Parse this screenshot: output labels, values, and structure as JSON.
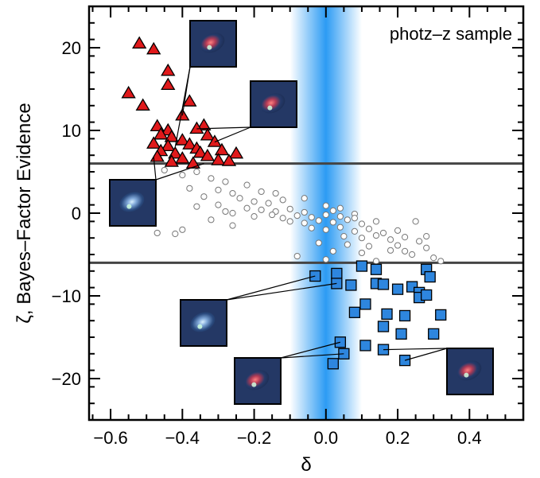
{
  "chart_data": {
    "type": "scatter",
    "annotation": "photz–z sample",
    "xlabel": "δ",
    "ylabel": "ζ, Bayes–Factor Evidence",
    "xlim": [
      -0.66,
      0.55
    ],
    "ylim": [
      -25,
      25
    ],
    "x_ticks": [
      -0.6,
      -0.4,
      -0.2,
      0.0,
      0.2,
      0.4
    ],
    "x_tick_labels": [
      "−0.6",
      "−0.4",
      "−0.2",
      "0.0",
      "0.2",
      "0.4"
    ],
    "y_ticks": [
      -20,
      -10,
      0,
      10,
      20
    ],
    "y_tick_labels": [
      "−20",
      "−10",
      "0",
      "10",
      "20"
    ],
    "threshold_lines": [
      6,
      -6
    ],
    "shaded_band": {
      "x_range": [
        -0.1,
        0.1
      ],
      "color": "#2196f3"
    },
    "grid": false,
    "series": [
      {
        "marker": "triangle",
        "color": "#e0191b",
        "points": [
          [
            -0.52,
            20.5
          ],
          [
            -0.48,
            19.8
          ],
          [
            -0.44,
            17.2
          ],
          [
            -0.44,
            15.5
          ],
          [
            -0.55,
            14.5
          ],
          [
            -0.51,
            13.0
          ],
          [
            -0.38,
            13.5
          ],
          [
            -0.4,
            11.8
          ],
          [
            -0.34,
            10.6
          ],
          [
            -0.47,
            10.5
          ],
          [
            -0.44,
            10.0
          ],
          [
            -0.36,
            10.2
          ],
          [
            -0.46,
            9.5
          ],
          [
            -0.43,
            9.2
          ],
          [
            -0.33,
            9.4
          ],
          [
            -0.4,
            8.8
          ],
          [
            -0.48,
            8.4
          ],
          [
            -0.44,
            8.1
          ],
          [
            -0.38,
            8.3
          ],
          [
            -0.31,
            8.6
          ],
          [
            -0.36,
            7.8
          ],
          [
            -0.46,
            7.5
          ],
          [
            -0.42,
            7.2
          ],
          [
            -0.35,
            7.3
          ],
          [
            -0.29,
            7.6
          ],
          [
            -0.25,
            7.2
          ],
          [
            -0.33,
            6.9
          ],
          [
            -0.47,
            6.8
          ],
          [
            -0.4,
            6.6
          ],
          [
            -0.3,
            6.4
          ],
          [
            -0.27,
            6.3
          ],
          [
            -0.43,
            6.2
          ],
          [
            -0.37,
            6.0
          ]
        ]
      },
      {
        "marker": "circle",
        "color": "#ffffff",
        "points": [
          [
            -0.45,
            5.2
          ],
          [
            -0.4,
            4.6
          ],
          [
            -0.36,
            5.0
          ],
          [
            -0.32,
            4.2
          ],
          [
            -0.28,
            3.8
          ],
          [
            -0.38,
            3.0
          ],
          [
            -0.3,
            2.8
          ],
          [
            -0.26,
            2.4
          ],
          [
            -0.22,
            3.4
          ],
          [
            -0.18,
            2.6
          ],
          [
            -0.34,
            2.0
          ],
          [
            -0.24,
            1.8
          ],
          [
            -0.2,
            1.4
          ],
          [
            -0.16,
            1.2
          ],
          [
            -0.12,
            1.6
          ],
          [
            -0.3,
            1.0
          ],
          [
            -0.22,
            0.6
          ],
          [
            -0.18,
            0.4
          ],
          [
            -0.14,
            0.2
          ],
          [
            -0.1,
            0.5
          ],
          [
            -0.06,
            0.1
          ],
          [
            -0.26,
            0.0
          ],
          [
            -0.2,
            -0.4
          ],
          [
            -0.15,
            -0.2
          ],
          [
            -0.12,
            -0.6
          ],
          [
            -0.08,
            -0.3
          ],
          [
            -0.04,
            -0.5
          ],
          [
            0.0,
            -0.2
          ],
          [
            0.04,
            -0.4
          ],
          [
            0.08,
            -0.1
          ],
          [
            -0.1,
            -1.0
          ],
          [
            -0.06,
            -1.2
          ],
          [
            -0.02,
            -0.9
          ],
          [
            0.02,
            -1.1
          ],
          [
            0.06,
            -0.8
          ],
          [
            0.1,
            -1.3
          ],
          [
            0.14,
            -1.0
          ],
          [
            -0.04,
            -1.8
          ],
          [
            0.0,
            -2.0
          ],
          [
            0.04,
            -1.7
          ],
          [
            0.08,
            -2.2
          ],
          [
            0.12,
            -1.9
          ],
          [
            0.16,
            -2.4
          ],
          [
            0.2,
            -2.1
          ],
          [
            0.05,
            -2.8
          ],
          [
            0.1,
            -3.0
          ],
          [
            0.14,
            -2.7
          ],
          [
            0.18,
            -3.2
          ],
          [
            0.22,
            -2.9
          ],
          [
            0.26,
            -3.4
          ],
          [
            -0.02,
            -3.6
          ],
          [
            0.06,
            -3.8
          ],
          [
            0.12,
            -4.0
          ],
          [
            0.2,
            -3.9
          ],
          [
            0.28,
            -4.2
          ],
          [
            0.02,
            -4.6
          ],
          [
            0.1,
            -4.8
          ],
          [
            0.18,
            -4.5
          ],
          [
            0.24,
            -5.0
          ],
          [
            0.3,
            -5.4
          ],
          [
            -0.08,
            -5.2
          ],
          [
            0.0,
            -5.6
          ],
          [
            0.14,
            -5.8
          ],
          [
            0.32,
            -5.8
          ],
          [
            -0.36,
            0.8
          ],
          [
            -0.42,
            -2.5
          ],
          [
            -0.47,
            -2.4
          ],
          [
            -0.4,
            -2.0
          ],
          [
            -0.14,
            2.4
          ],
          [
            -0.06,
            1.8
          ],
          [
            0.02,
            0.3
          ],
          [
            0.0,
            0.9
          ],
          [
            -0.28,
            0.2
          ],
          [
            -0.32,
            -0.8
          ],
          [
            -0.26,
            -1.5
          ],
          [
            0.25,
            -1.0
          ],
          [
            0.28,
            -2.8
          ],
          [
            0.22,
            -4.6
          ],
          [
            0.04,
            0.6
          ],
          [
            0.08,
            -0.6
          ]
        ]
      },
      {
        "marker": "square",
        "color": "#2e86de",
        "points": [
          [
            -0.03,
            -7.6
          ],
          [
            0.03,
            -7.3
          ],
          [
            0.1,
            -6.4
          ],
          [
            0.14,
            -6.8
          ],
          [
            0.28,
            -6.8
          ],
          [
            0.03,
            -8.5
          ],
          [
            0.07,
            -8.7
          ],
          [
            0.14,
            -8.5
          ],
          [
            0.16,
            -8.6
          ],
          [
            0.2,
            -9.2
          ],
          [
            0.24,
            -8.9
          ],
          [
            0.26,
            -9.6
          ],
          [
            0.26,
            -10.2
          ],
          [
            0.28,
            -9.9
          ],
          [
            0.29,
            -7.7
          ],
          [
            0.11,
            -11.0
          ],
          [
            0.08,
            -12.0
          ],
          [
            0.17,
            -12.2
          ],
          [
            0.22,
            -12.4
          ],
          [
            0.32,
            -12.3
          ],
          [
            0.16,
            -13.7
          ],
          [
            0.21,
            -14.6
          ],
          [
            0.3,
            -14.6
          ],
          [
            0.04,
            -15.6
          ],
          [
            0.11,
            -16.0
          ],
          [
            0.16,
            -16.5
          ],
          [
            0.05,
            -17.0
          ],
          [
            0.02,
            -18.2
          ],
          [
            0.22,
            -17.8
          ]
        ]
      }
    ],
    "inset_images": [
      {
        "name": "inset-top-left",
        "description": "galaxy cutout",
        "connector_points": [
          [
            -0.4,
            11.8
          ],
          [
            -0.42,
            8.0
          ]
        ]
      },
      {
        "name": "inset-top-right",
        "description": "galaxy cutout",
        "connector_points": [
          [
            -0.36,
            10.2
          ],
          [
            -0.31,
            8.6
          ]
        ]
      },
      {
        "name": "inset-left",
        "description": "galaxy cutout",
        "connector_points": [
          [
            -0.48,
            6.8
          ],
          [
            -0.34,
            6.0
          ]
        ]
      },
      {
        "name": "inset-middle",
        "description": "galaxy cutout",
        "connector_points": [
          [
            -0.03,
            -7.6
          ],
          [
            0.03,
            -8.5
          ]
        ]
      },
      {
        "name": "inset-bottom-middle",
        "description": "galaxy cutout",
        "connector_points": [
          [
            0.04,
            -15.6
          ],
          [
            0.05,
            -17.0
          ]
        ]
      },
      {
        "name": "inset-bottom-right",
        "description": "galaxy cutout",
        "connector_points": [
          [
            0.16,
            -16.5
          ],
          [
            0.22,
            -17.8
          ]
        ]
      }
    ]
  }
}
